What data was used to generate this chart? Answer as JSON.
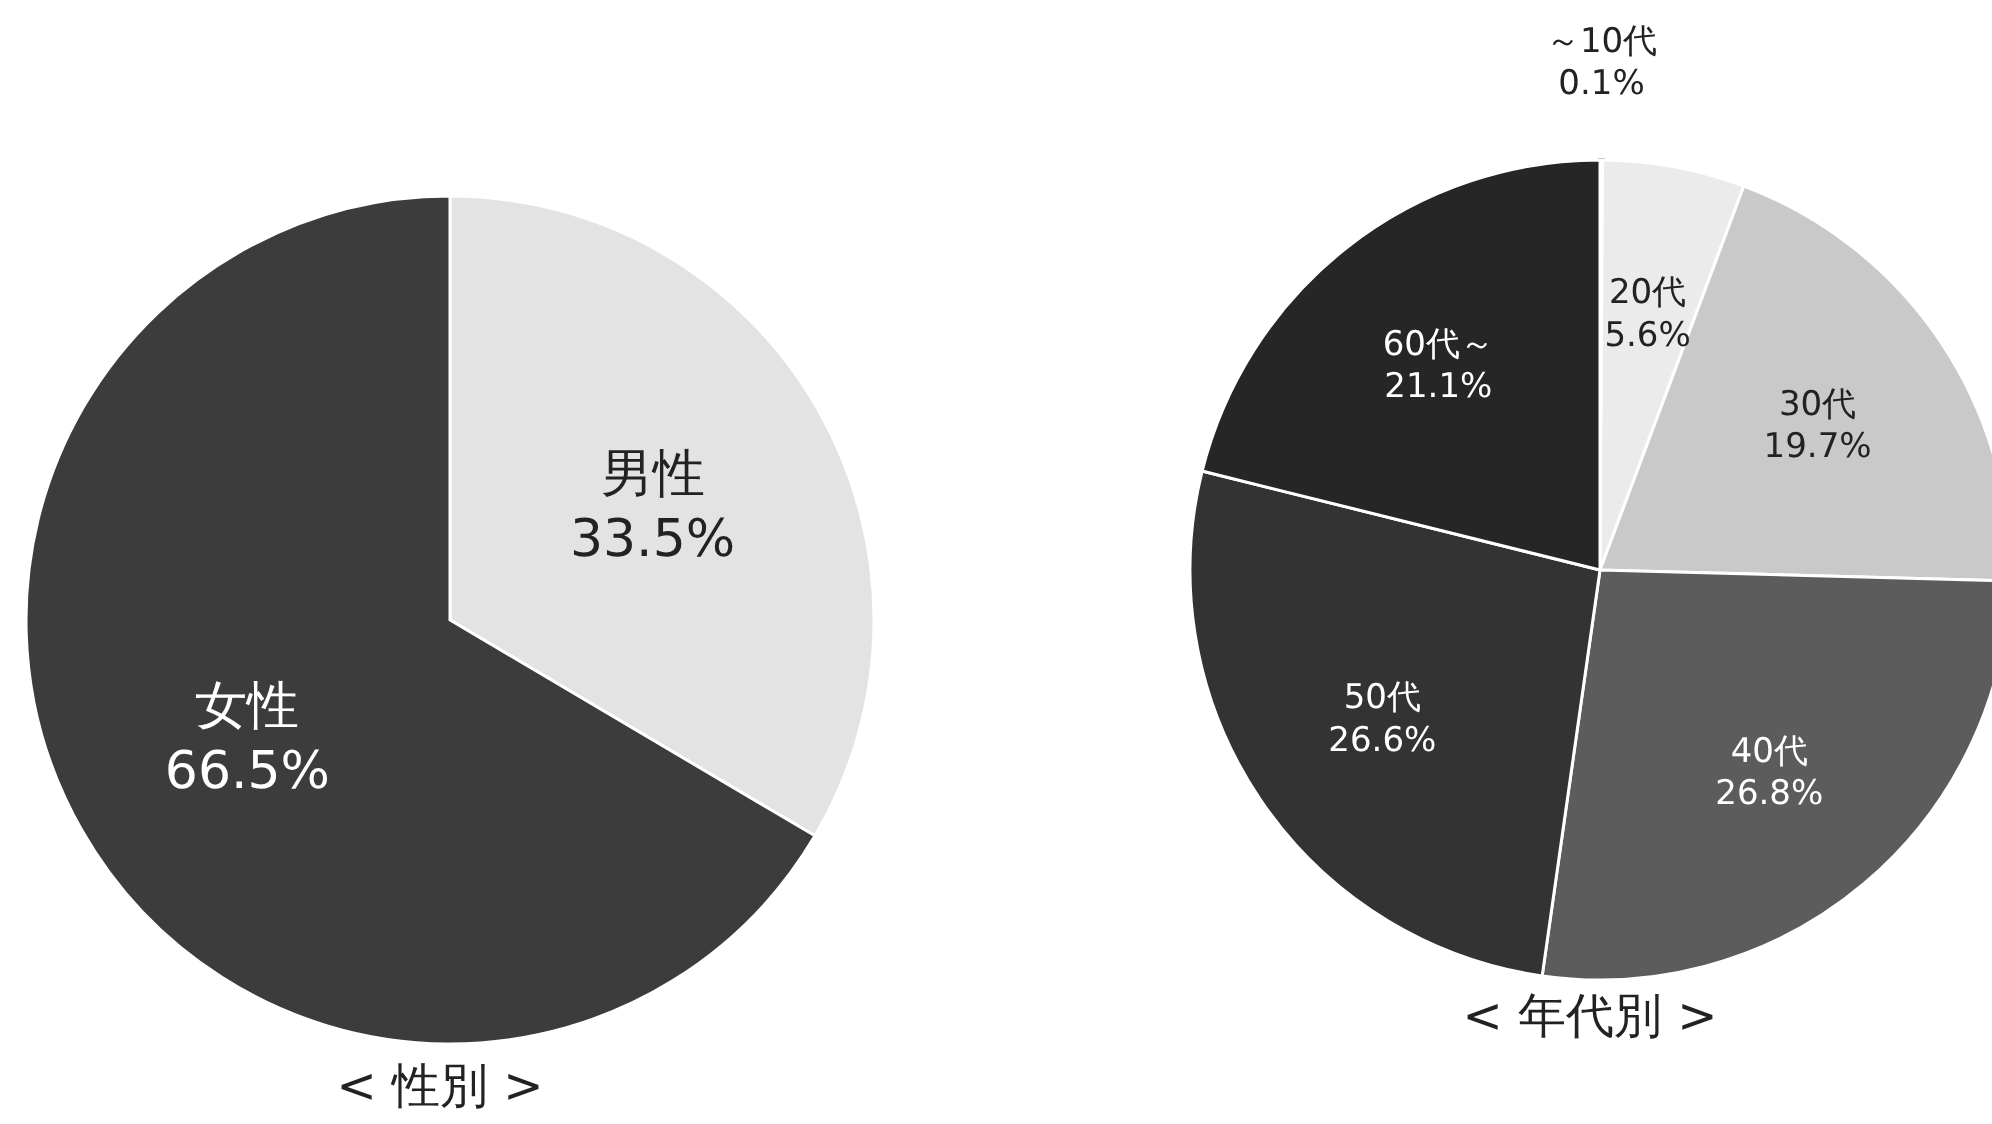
{
  "chart_data": [
    {
      "type": "pie",
      "title": "< 性別 >",
      "categories": [
        "男性",
        "女性"
      ],
      "values": [
        33.5,
        66.5
      ],
      "colors": [
        "#e3e3e3",
        "#3c3c3c"
      ],
      "value_labels": [
        "33.5%",
        "66.5%"
      ]
    },
    {
      "type": "pie",
      "title": "< 年代別 >",
      "categories": [
        "～10代",
        "20代",
        "30代",
        "40代",
        "50代",
        "60代～"
      ],
      "values": [
        0.1,
        5.6,
        19.7,
        26.8,
        26.6,
        21.1
      ],
      "colors": [
        "#8a8a8a",
        "#ebebeb",
        "#c9c9c9",
        "#5c5c5c",
        "#333333",
        "#262626"
      ],
      "value_labels": [
        "0.1%",
        "5.6%",
        "19.7%",
        "26.8%",
        "26.6%",
        "21.1%"
      ]
    }
  ]
}
